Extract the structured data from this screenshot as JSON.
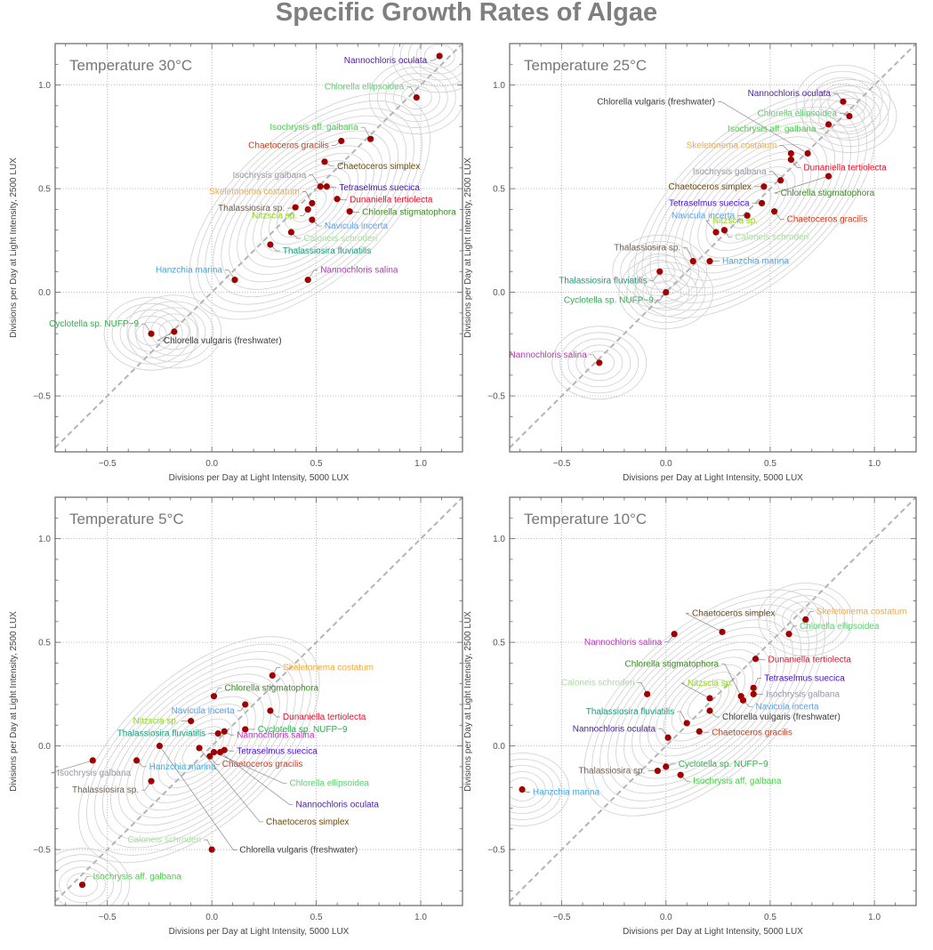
{
  "title": "Specific Growth Rates of Algae",
  "colors": {
    "point": "#a00000",
    "contour": "#d0d0d0",
    "diagonal": "#b4b4b4",
    "grid": "#a8a8a8",
    "frame": "#666666"
  },
  "species_colors": {
    "Nannochloris oculata": "#4b1f9e",
    "Chlorella ellipsoidea": "#5ccf6e",
    "Isochrysis aff. galbana": "#3dd63d",
    "Chaetoceros gracilis": "#d23a1a",
    "Chaetoceros simplex": "#6b4a12",
    "Isochrysis galbana": "#9a94a8",
    "Tetraselmus suecica": "#4a10c8",
    "Dunaniella tertiolecta": "#e8102a",
    "Chlorella stigmatophora": "#3a8a22",
    "Skeletonema costatum": "#f5a83a",
    "Thalassiosira sp.": "#6e5e52",
    "Nitzscia sp.": "#8ed61a",
    "Navicula incerta": "#5ea0e6",
    "Caloneis schroderi": "#a8dca0",
    "Thalassiosira fluviatilis": "#1a9a7a",
    "Hanzchia marina": "#3fa8e0",
    "Nannochloris salina": "#c030c0",
    "Cyclotella sp. NUFP−9": "#2ab04a",
    "Chlorella vulgaris (freshwater)": "#3c3c3c"
  },
  "chart_data": [
    {
      "type": "scatter",
      "title": "Temperature 30°C",
      "xlabel": "Divisions per Day at Light Intensity, 5000 LUX",
      "ylabel": "Divisions per Day at Light Intensity, 2500 LUX",
      "xlim": [
        -0.75,
        1.2
      ],
      "ylim": [
        -0.77,
        1.2
      ],
      "xticks": [
        "−0.5",
        "0.0",
        "0.5",
        "1.0"
      ],
      "yticks": [
        "−0.5",
        "0.0",
        "0.5",
        "1.0"
      ],
      "grid": true,
      "reference_line": "y = x",
      "points": [
        {
          "name": "Nannochloris oculata",
          "x": 1.09,
          "y": 1.14
        },
        {
          "name": "Chlorella ellipsoidea",
          "x": 0.98,
          "y": 0.94
        },
        {
          "name": "Isochrysis aff. galbana",
          "x": 0.76,
          "y": 0.74
        },
        {
          "name": "Chaetoceros gracilis",
          "x": 0.62,
          "y": 0.73
        },
        {
          "name": "Chaetoceros simplex",
          "x": 0.54,
          "y": 0.63
        },
        {
          "name": "Isochrysis galbana",
          "x": 0.52,
          "y": 0.51
        },
        {
          "name": "Tetraselmus suecica",
          "x": 0.55,
          "y": 0.51
        },
        {
          "name": "Dunaniella tertiolecta",
          "x": 0.6,
          "y": 0.45
        },
        {
          "name": "Chlorella stigmatophora",
          "x": 0.66,
          "y": 0.39
        },
        {
          "name": "Skeletonema costatum",
          "x": 0.48,
          "y": 0.43
        },
        {
          "name": "Thalassiosira sp.",
          "x": 0.4,
          "y": 0.41
        },
        {
          "name": "Nitzscia sp.",
          "x": 0.46,
          "y": 0.4
        },
        {
          "name": "Navicula incerta",
          "x": 0.48,
          "y": 0.35
        },
        {
          "name": "Caloneis schroderi",
          "x": 0.38,
          "y": 0.29
        },
        {
          "name": "Thalassiosira fluviatilis",
          "x": 0.28,
          "y": 0.23
        },
        {
          "name": "Hanzchia marina",
          "x": 0.11,
          "y": 0.06
        },
        {
          "name": "Nannochloris salina",
          "x": 0.46,
          "y": 0.06
        },
        {
          "name": "Cyclotella sp. NUFP−9",
          "x": -0.29,
          "y": -0.2
        },
        {
          "name": "Chlorella vulgaris (freshwater)",
          "x": -0.18,
          "y": -0.19
        }
      ]
    },
    {
      "type": "scatter",
      "title": "Temperature 25°C",
      "xlabel": "Divisions per Day at Light Intensity, 5000 LUX",
      "ylabel": "Divisions per Day at Light Intensity, 2500 LUX",
      "xlim": [
        -0.75,
        1.2
      ],
      "ylim": [
        -0.77,
        1.2
      ],
      "xticks": [
        "−0.5",
        "0.0",
        "0.5",
        "1.0"
      ],
      "yticks": [
        "−0.5",
        "0.0",
        "0.5",
        "1.0"
      ],
      "grid": true,
      "reference_line": "y = x",
      "points": [
        {
          "name": "Nannochloris oculata",
          "x": 0.85,
          "y": 0.92
        },
        {
          "name": "Chlorella ellipsoidea",
          "x": 0.88,
          "y": 0.85
        },
        {
          "name": "Isochrysis aff. galbana",
          "x": 0.78,
          "y": 0.81
        },
        {
          "name": "Chlorella vulgaris (freshwater)",
          "x": 0.68,
          "y": 0.67
        },
        {
          "name": "Skeletonema costatum",
          "x": 0.6,
          "y": 0.67
        },
        {
          "name": "Dunaniella tertiolecta",
          "x": 0.6,
          "y": 0.64
        },
        {
          "name": "Chlorella stigmatophora",
          "x": 0.78,
          "y": 0.56
        },
        {
          "name": "Isochrysis galbana",
          "x": 0.55,
          "y": 0.54
        },
        {
          "name": "Chaetoceros simplex",
          "x": 0.47,
          "y": 0.51
        },
        {
          "name": "Tetraselmus suecica",
          "x": 0.46,
          "y": 0.43
        },
        {
          "name": "Chaetoceros gracilis",
          "x": 0.52,
          "y": 0.39
        },
        {
          "name": "Navicula incerta",
          "x": 0.39,
          "y": 0.37
        },
        {
          "name": "Caloneis schroderi",
          "x": 0.28,
          "y": 0.3
        },
        {
          "name": "Nitzscia sp.",
          "x": 0.24,
          "y": 0.29
        },
        {
          "name": "Thalassiosira sp.",
          "x": 0.13,
          "y": 0.15
        },
        {
          "name": "Hanzchia marina",
          "x": 0.21,
          "y": 0.15
        },
        {
          "name": "Thalassiosira fluviatilis",
          "x": -0.03,
          "y": 0.1
        },
        {
          "name": "Cyclotella sp. NUFP−9",
          "x": 0.0,
          "y": 0.0
        },
        {
          "name": "Nannochloris salina",
          "x": -0.32,
          "y": -0.34
        }
      ]
    },
    {
      "type": "scatter",
      "title": "Temperature 5°C",
      "xlabel": "Divisions per Day at Light Intensity, 5000 LUX",
      "ylabel": "Divisions per Day at Light Intensity, 2500 LUX",
      "xlim": [
        -0.75,
        1.2
      ],
      "ylim": [
        -0.77,
        1.2
      ],
      "xticks": [
        "−0.5",
        "0.0",
        "0.5",
        "1.0"
      ],
      "yticks": [
        "−0.5",
        "0.0",
        "0.5",
        "1.0"
      ],
      "grid": true,
      "reference_line": "y = x",
      "points": [
        {
          "name": "Skeletonema costatum",
          "x": 0.29,
          "y": 0.34
        },
        {
          "name": "Chlorella stigmatophora",
          "x": 0.01,
          "y": 0.24
        },
        {
          "name": "Navicula incerta",
          "x": 0.16,
          "y": 0.2
        },
        {
          "name": "Dunaniella tertiolecta",
          "x": 0.28,
          "y": 0.17
        },
        {
          "name": "Nitzscia sp.",
          "x": -0.1,
          "y": 0.12
        },
        {
          "name": "Cyclotella sp. NUFP−9",
          "x": 0.16,
          "y": 0.08
        },
        {
          "name": "Nannochloris salina",
          "x": 0.06,
          "y": 0.07
        },
        {
          "name": "Thalassiosira fluviatilis",
          "x": 0.03,
          "y": 0.06
        },
        {
          "name": "Tetraselmus suecica",
          "x": 0.06,
          "y": -0.02
        },
        {
          "name": "Chaetoceros gracilis",
          "x": -0.01,
          "y": -0.05
        },
        {
          "name": "Chlorella ellipsoidea",
          "x": 0.01,
          "y": -0.03
        },
        {
          "name": "Nannochloris oculata",
          "x": 0.04,
          "y": -0.03
        },
        {
          "name": "Chaetoceros simplex",
          "x": -0.06,
          "y": -0.01
        },
        {
          "name": "Chlorella vulgaris (freshwater)",
          "x": -0.25,
          "y": 0.0
        },
        {
          "name": "Hanzchia marina",
          "x": -0.36,
          "y": -0.07
        },
        {
          "name": "Isochrysis galbana",
          "x": -0.57,
          "y": -0.07
        },
        {
          "name": "Thalassiosira sp.",
          "x": -0.29,
          "y": -0.17
        },
        {
          "name": "Caloneis schroderi",
          "x": 0.0,
          "y": -0.5
        },
        {
          "name": "Isochrysis aff. galbana",
          "x": -0.62,
          "y": -0.67
        }
      ]
    },
    {
      "type": "scatter",
      "title": "Temperature 10°C",
      "xlabel": "Divisions per Day at Light Intensity, 5000 LUX",
      "ylabel": "Divisions per Day at Light Intensity, 2500 LUX",
      "xlim": [
        -0.75,
        1.2
      ],
      "ylim": [
        -0.77,
        1.2
      ],
      "xticks": [
        "−0.5",
        "0.0",
        "0.5",
        "1.0"
      ],
      "yticks": [
        "−0.5",
        "0.0",
        "0.5",
        "1.0"
      ],
      "grid": true,
      "reference_line": "y = x",
      "points": [
        {
          "name": "Skeletonema costatum",
          "x": 0.67,
          "y": 0.61
        },
        {
          "name": "Chlorella ellipsoidea",
          "x": 0.59,
          "y": 0.54
        },
        {
          "name": "Chaetoceros simplex",
          "x": 0.27,
          "y": 0.55
        },
        {
          "name": "Nannochloris salina",
          "x": 0.04,
          "y": 0.54
        },
        {
          "name": "Dunaniella tertiolecta",
          "x": 0.43,
          "y": 0.42
        },
        {
          "name": "Tetraselmus suecica",
          "x": 0.42,
          "y": 0.28
        },
        {
          "name": "Isochrysis galbana",
          "x": 0.42,
          "y": 0.25
        },
        {
          "name": "Chlorella stigmatophora",
          "x": 0.36,
          "y": 0.24
        },
        {
          "name": "Navicula incerta",
          "x": 0.37,
          "y": 0.22
        },
        {
          "name": "Caloneis schroderi",
          "x": -0.09,
          "y": 0.25
        },
        {
          "name": "Nitzscia sp.",
          "x": 0.21,
          "y": 0.23
        },
        {
          "name": "Chlorella vulgaris (freshwater)",
          "x": 0.21,
          "y": 0.17
        },
        {
          "name": "Thalassiosira fluviatilis",
          "x": 0.1,
          "y": 0.11
        },
        {
          "name": "Chaetoceros gracilis",
          "x": 0.16,
          "y": 0.07
        },
        {
          "name": "Nannochloris oculata",
          "x": 0.01,
          "y": 0.04
        },
        {
          "name": "Thalassiosira sp.",
          "x": -0.04,
          "y": -0.12
        },
        {
          "name": "Cyclotella sp. NUFP−9",
          "x": 0.0,
          "y": -0.1
        },
        {
          "name": "Isochrysis aff. galbana",
          "x": 0.07,
          "y": -0.14
        },
        {
          "name": "Hanzchia marina",
          "x": -0.69,
          "y": -0.21
        }
      ]
    }
  ]
}
